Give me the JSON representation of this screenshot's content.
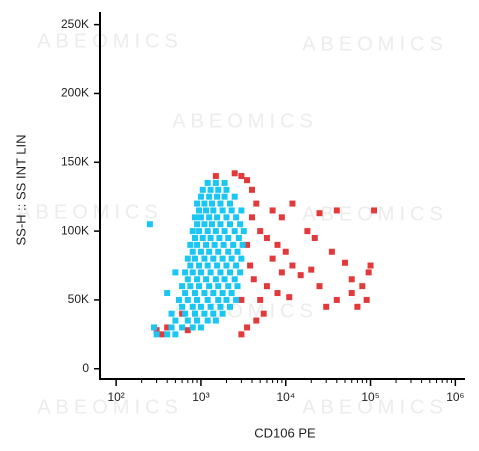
{
  "chart_data": {
    "type": "scatter",
    "watermark": "ABEOMICS",
    "xlabel": "CD106 PE",
    "ylabel": "SS-H :: SS INT LIN",
    "xscale": "log",
    "xlim": [
      70,
      1300000
    ],
    "ylim": [
      -6000,
      257000
    ],
    "xticks": [
      {
        "value": 100,
        "label": "10²"
      },
      {
        "value": 1000,
        "label": "10³"
      },
      {
        "value": 10000,
        "label": "10⁴"
      },
      {
        "value": 100000,
        "label": "10⁵"
      },
      {
        "value": 1000000,
        "label": "10⁶"
      }
    ],
    "yticks": [
      0,
      {
        "value": 50000,
        "label": "50K"
      },
      {
        "value": 100000,
        "label": "100K"
      },
      {
        "value": 150000,
        "label": "150K"
      },
      {
        "value": 200000,
        "label": "200K"
      },
      {
        "value": 250000,
        "label": "250K"
      }
    ],
    "series": [
      {
        "color": "#e2393b",
        "x": [
          5000,
          6000,
          8000,
          10000,
          7000,
          12000,
          9000,
          15000,
          20000,
          25000,
          6000,
          8000,
          5000,
          11000,
          30000,
          40000,
          60000,
          80000,
          90000,
          100000,
          95000,
          50000,
          35000,
          18000,
          22000,
          25000,
          40000,
          110000,
          70000,
          4500,
          5500,
          3500,
          3000,
          700,
          400,
          350,
          1500,
          2500,
          3000,
          3500,
          4000,
          4500,
          4000,
          3500,
          3800,
          4200,
          3000,
          12000,
          9000,
          600,
          300,
          7000,
          60000
        ],
        "values": [
          100000,
          95000,
          90000,
          85000,
          80000,
          75000,
          70000,
          68000,
          72000,
          60000,
          60000,
          55000,
          50000,
          52000,
          45000,
          50000,
          55000,
          60000,
          50000,
          75000,
          70000,
          77000,
          85000,
          100000,
          95000,
          113000,
          115000,
          115000,
          45000,
          35000,
          40000,
          30000,
          25000,
          28000,
          30000,
          25000,
          140000,
          142000,
          140000,
          137000,
          130000,
          120000,
          110000,
          90000,
          75000,
          65000,
          50000,
          120000,
          110000,
          40000,
          28000,
          115000,
          65000
        ]
      },
      {
        "color": "#1ac6f2",
        "x": [
          300,
          400,
          500,
          280,
          450,
          600,
          800,
          1000,
          500,
          700,
          900,
          1200,
          1500,
          450,
          650,
          850,
          1100,
          1400,
          1800,
          600,
          800,
          1000,
          1300,
          1700,
          2200,
          550,
          700,
          900,
          1200,
          1600,
          2000,
          2600,
          650,
          850,
          1100,
          1400,
          1800,
          2300,
          600,
          750,
          950,
          1250,
          1600,
          2100,
          2700,
          700,
          900,
          1150,
          1500,
          1900,
          2500,
          650,
          800,
          1000,
          1300,
          1700,
          2200,
          2900,
          750,
          950,
          1200,
          1550,
          2000,
          2600,
          700,
          850,
          1100,
          1400,
          1800,
          2300,
          3000,
          800,
          1000,
          1250,
          1600,
          2100,
          2700,
          750,
          900,
          1150,
          1450,
          1850,
          2400,
          3100,
          850,
          1050,
          1300,
          1650,
          2100,
          2800,
          800,
          950,
          1200,
          1500,
          1900,
          2500,
          3200,
          900,
          1100,
          1350,
          1700,
          2200,
          2900,
          850,
          1000,
          1250,
          1550,
          2000,
          2600,
          950,
          1150,
          1400,
          1800,
          2300,
          3000,
          900,
          1100,
          1350,
          1700,
          2200,
          1000,
          1250,
          1550,
          1900,
          2500,
          1050,
          1300,
          1600,
          2000,
          1200,
          1500,
          1900,
          250,
          400,
          500
        ],
        "values": [
          25000,
          25000,
          25000,
          30000,
          30000,
          30000,
          30000,
          30000,
          35000,
          35000,
          35000,
          35000,
          35000,
          40000,
          40000,
          40000,
          40000,
          40000,
          40000,
          45000,
          45000,
          45000,
          45000,
          45000,
          45000,
          50000,
          50000,
          50000,
          50000,
          50000,
          50000,
          50000,
          55000,
          55000,
          55000,
          55000,
          55000,
          55000,
          60000,
          60000,
          60000,
          60000,
          60000,
          60000,
          60000,
          65000,
          65000,
          65000,
          65000,
          65000,
          65000,
          70000,
          70000,
          70000,
          70000,
          70000,
          70000,
          70000,
          75000,
          75000,
          75000,
          75000,
          75000,
          75000,
          80000,
          80000,
          80000,
          80000,
          80000,
          80000,
          80000,
          85000,
          85000,
          85000,
          85000,
          85000,
          85000,
          90000,
          90000,
          90000,
          90000,
          90000,
          90000,
          90000,
          95000,
          95000,
          95000,
          95000,
          95000,
          95000,
          100000,
          100000,
          100000,
          100000,
          100000,
          100000,
          100000,
          105000,
          105000,
          105000,
          105000,
          105000,
          105000,
          110000,
          110000,
          110000,
          110000,
          110000,
          110000,
          115000,
          115000,
          115000,
          115000,
          115000,
          115000,
          120000,
          120000,
          120000,
          120000,
          120000,
          125000,
          125000,
          125000,
          125000,
          125000,
          130000,
          130000,
          130000,
          130000,
          135000,
          135000,
          135000,
          105000,
          55000,
          70000
        ]
      }
    ]
  }
}
